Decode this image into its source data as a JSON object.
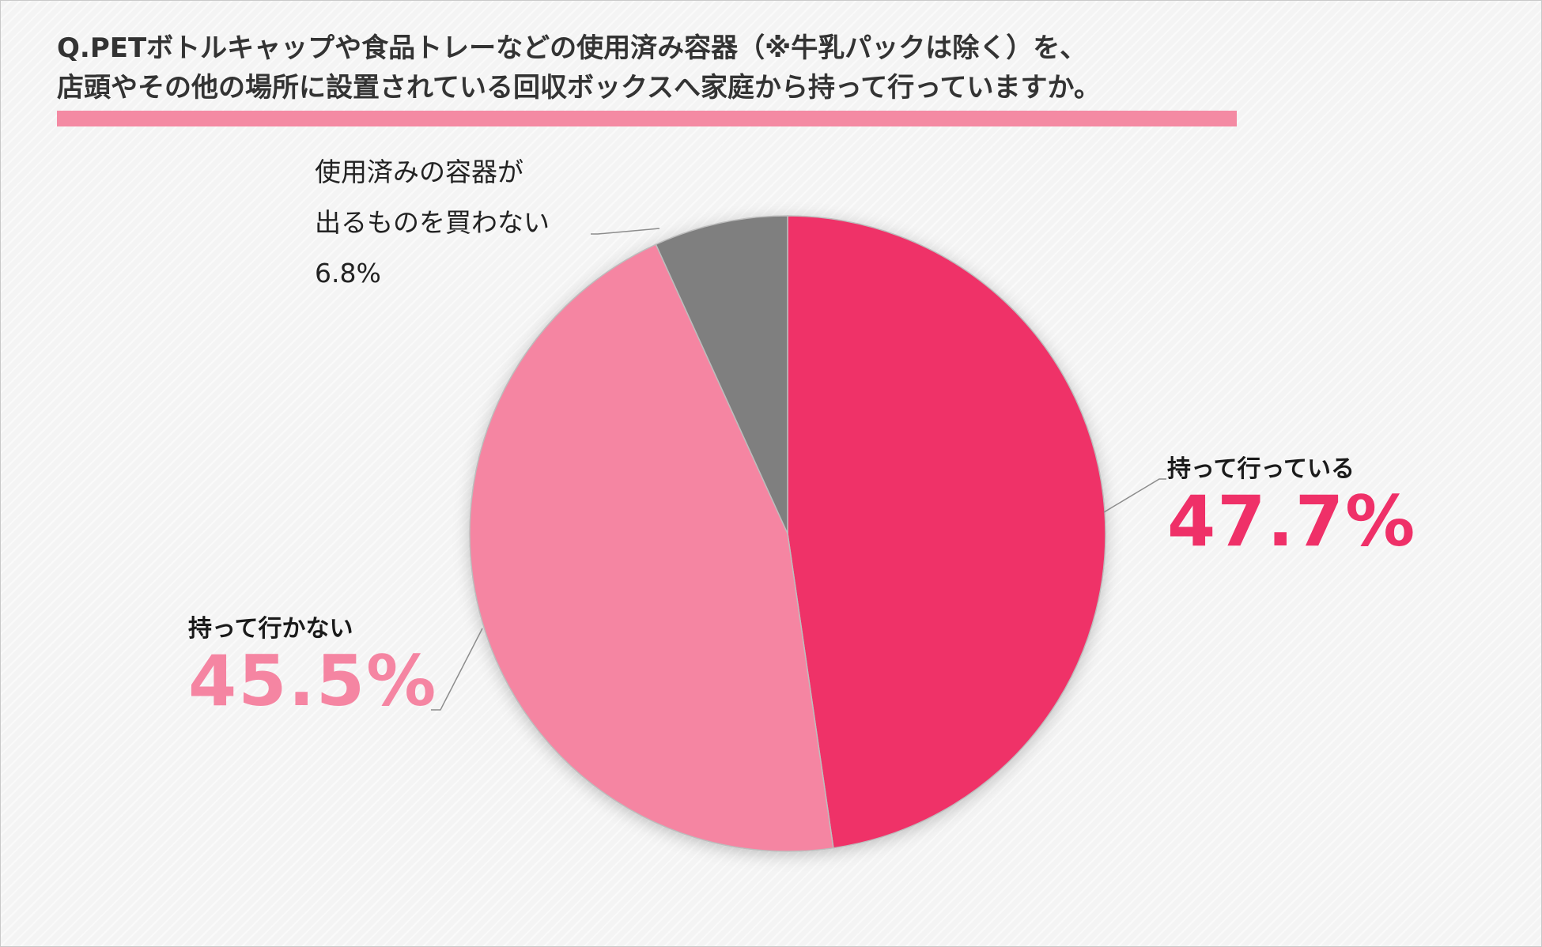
{
  "title": {
    "line1": "Q.PETボトルキャップや食品トレーなどの使用済み容器（※牛乳パックは除く）を、",
    "line2": "店頭やその他の場所に設置されている回収ボックスへ家庭から持って行っていますか。"
  },
  "colors": {
    "accent_bar": "#f48aa3",
    "slice_go": "#ef3068",
    "slice_not": "#f585a2",
    "slice_nobuy": "#7f7f7f",
    "leader": "#8c8c8c"
  },
  "chart_data": {
    "type": "pie",
    "title": "",
    "start_angle_deg": 0,
    "direction": "clockwise",
    "slices": [
      {
        "label": "持って行っている",
        "value": 47.7,
        "display": "47.7%",
        "color": "#ef3068"
      },
      {
        "label": "持って行かない",
        "value": 45.5,
        "display": "45.5%",
        "color": "#f585a2"
      },
      {
        "label_line1": "使用済みの容器が",
        "label_line2": "出るものを買わない",
        "value": 6.8,
        "display": "6.8%",
        "color": "#7f7f7f"
      }
    ]
  }
}
